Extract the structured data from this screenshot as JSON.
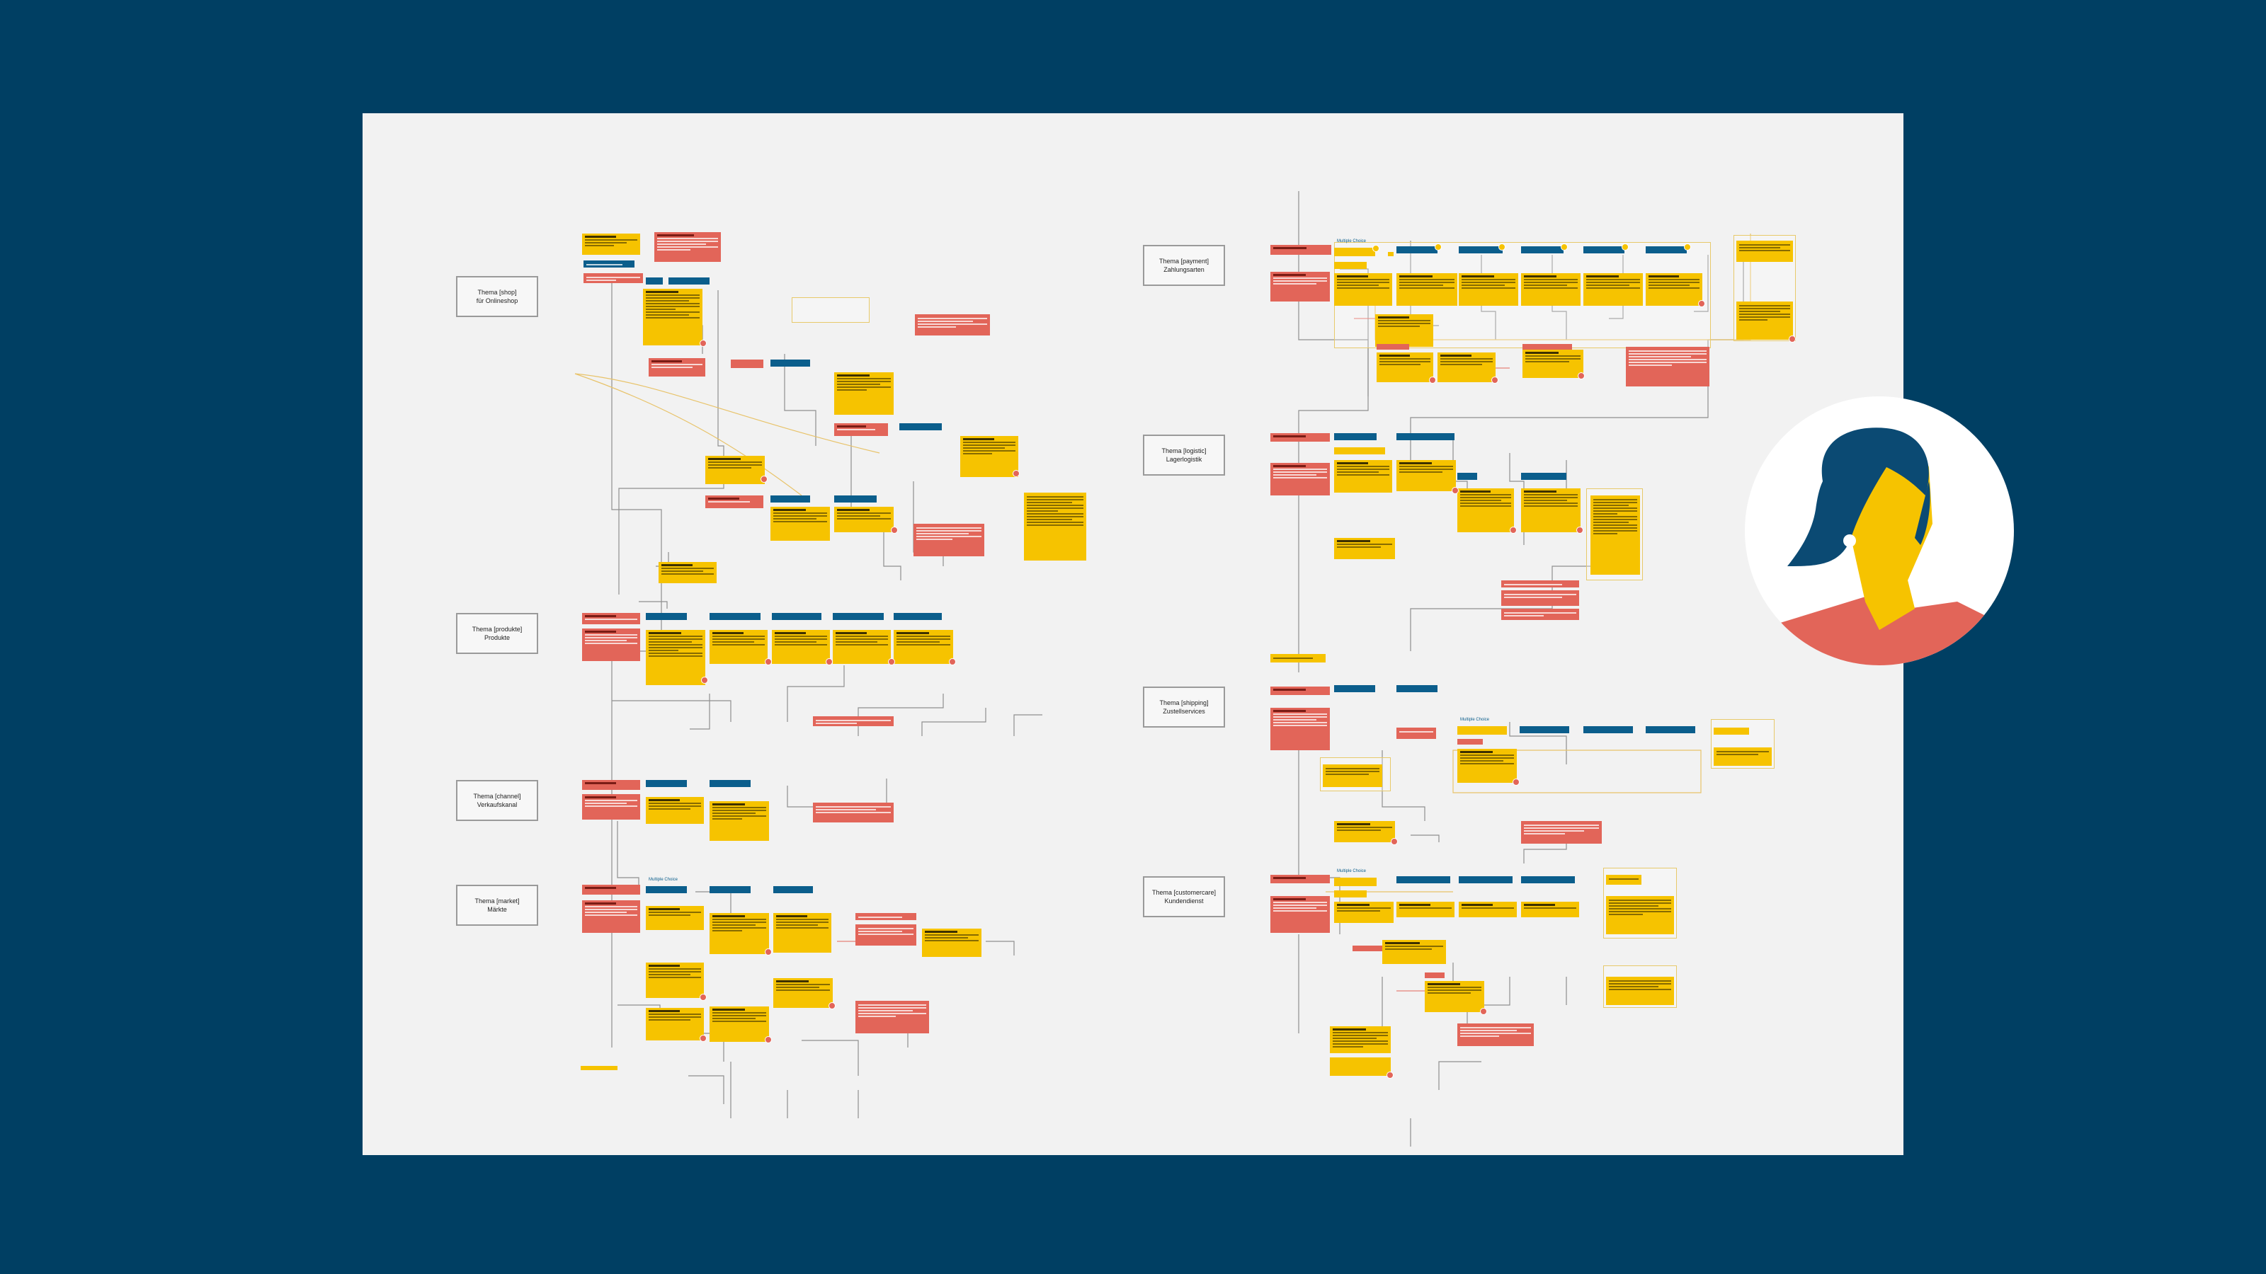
{
  "themes": [
    {
      "line1": "Thema [shop]",
      "line2": "für Onlineshop"
    },
    {
      "line1": "Thema [produkte]",
      "line2": "Produkte"
    },
    {
      "line1": "Thema [channel]",
      "line2": "Verkaufskanal"
    },
    {
      "line1": "Thema [market]",
      "line2": "Märkte"
    },
    {
      "line1": "Thema [payment]",
      "line2": "Zahlungsarten"
    },
    {
      "line1": "Thema [logistic]",
      "line2": "Lagerlogistik"
    },
    {
      "line1": "Thema [shipping]",
      "line2": "Zustellservices"
    },
    {
      "line1": "Thema [customercare]",
      "line2": "Kundendienst"
    }
  ],
  "labels": {
    "multiple_choice": "Multiple Choice"
  },
  "colors": {
    "page_background": "#003f63",
    "board": "#f2f2f2",
    "note_yellow": "#f6c300",
    "note_red": "#e26559",
    "note_blue": "#0b5e8c",
    "avatar_hair": "#0b4a73",
    "avatar_skin": "#f6c300",
    "avatar_shirt": "#e26559"
  },
  "avatar": {
    "icon": "person-portrait-icon"
  }
}
